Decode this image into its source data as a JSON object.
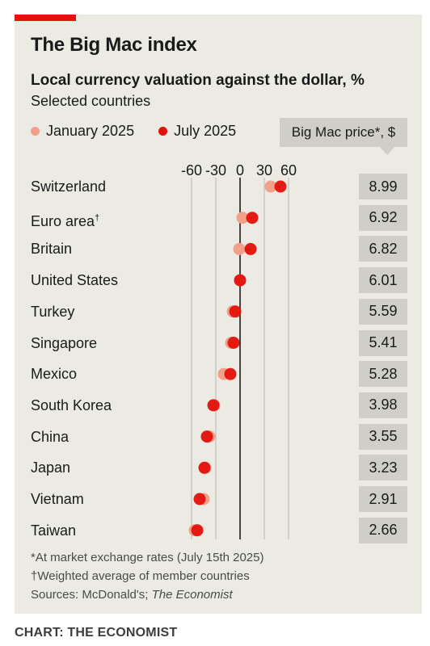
{
  "title": "The Big Mac index",
  "subtitle": "Local currency valuation against the dollar, %",
  "subsubtitle": "Selected countries",
  "price_header": "Big Mac price*, $",
  "footnotes": {
    "note1": "*At market exchange rates (July 15th 2025)",
    "note2": "†Weighted average of member countries",
    "sources_prefix": "Sources: McDonald's; ",
    "sources_italic": "The Economist"
  },
  "credit": "CHART: THE ECONOMIST",
  "colors": {
    "january": "#f2a08a",
    "july": "#e3120b",
    "connector": "#555555",
    "panel": "#ebebe4",
    "price_box": "#cfcfc8"
  },
  "chart_data": {
    "type": "dot",
    "x_ticks": [
      "-60",
      "-30",
      "0",
      "30",
      "60"
    ],
    "x_range": [
      -60,
      60
    ],
    "series": [
      {
        "name": "January 2025",
        "key": "jan"
      },
      {
        "name": "July 2025",
        "key": "jul"
      }
    ],
    "rows": [
      {
        "label": "Switzerland",
        "jan": 38,
        "jul": 50,
        "price": "8.99"
      },
      {
        "label": "Euro area",
        "sup": "†",
        "jan": 3,
        "jul": 15,
        "price": "6.92"
      },
      {
        "label": "Britain",
        "jan": -1,
        "jul": 13,
        "price": "6.82"
      },
      {
        "label": "United States",
        "jan": 0,
        "jul": 0,
        "price": "6.01"
      },
      {
        "label": "Turkey",
        "jan": -9,
        "jul": -6,
        "price": "5.59"
      },
      {
        "label": "Singapore",
        "jan": -11,
        "jul": -8,
        "price": "5.41"
      },
      {
        "label": "Mexico",
        "jan": -20,
        "jul": -12,
        "price": "5.28"
      },
      {
        "label": "South Korea",
        "jan": -32,
        "jul": -33,
        "price": "3.98"
      },
      {
        "label": "China",
        "jan": -38,
        "jul": -41,
        "price": "3.55"
      },
      {
        "label": "Japan",
        "jan": -43,
        "jul": -44,
        "price": "3.23"
      },
      {
        "label": "Vietnam",
        "jan": -45,
        "jul": -50,
        "price": "2.91"
      },
      {
        "label": "Taiwan",
        "jan": -56,
        "jul": -53,
        "price": "2.66"
      }
    ]
  }
}
